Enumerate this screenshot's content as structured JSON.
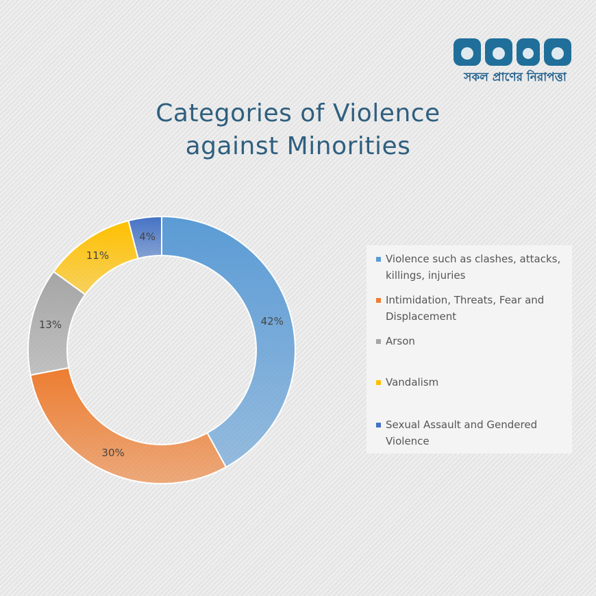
{
  "brand": {
    "tagline": "সকল প্রাণের নিরাপত্তা"
  },
  "chart_data": {
    "type": "donut",
    "title": "Categories of Violence against Minorities",
    "categories": [
      "Violence such as clashes, attacks, killings, injuries",
      "Intimidation, Threats, Fear and Displacement",
      "Arson",
      "Vandalism",
      "Sexual Assault and Gendered Violence"
    ],
    "values": [
      42,
      30,
      13,
      11,
      4
    ],
    "value_labels": [
      "42%",
      "30%",
      "13%",
      "11%",
      "4%"
    ],
    "colors": [
      "#5b9bd5",
      "#ed7d31",
      "#a5a5a5",
      "#ffc000",
      "#4472c4"
    ],
    "legend": "right"
  }
}
